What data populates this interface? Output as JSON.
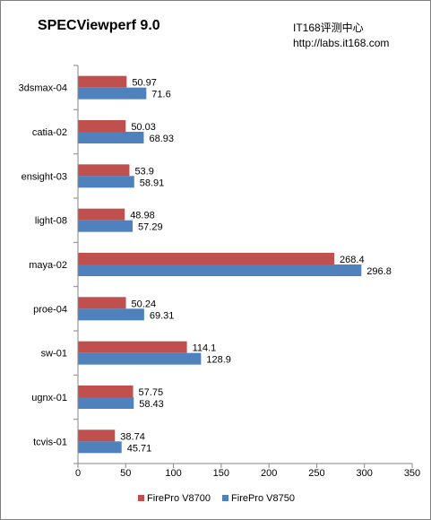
{
  "watermark": {
    "line1": "IT168评测中心",
    "line2": "http://labs.it168.com"
  },
  "colors": {
    "series1": "#c0504d",
    "series2": "#4f81bd",
    "axis": "#868686"
  },
  "chart_data": {
    "type": "bar",
    "orientation": "horizontal",
    "title": "SPECViewperf 9.0",
    "categories": [
      "3dsmax-04",
      "catia-02",
      "ensight-03",
      "light-08",
      "maya-02",
      "proe-04",
      "sw-01",
      "ugnx-01",
      "tcvis-01"
    ],
    "series": [
      {
        "name": "FirePro V8700",
        "values": [
          50.97,
          50.03,
          53.9,
          48.98,
          268.4,
          50.24,
          114.1,
          57.75,
          38.74
        ]
      },
      {
        "name": "FirePro V8750",
        "values": [
          71.6,
          68.93,
          58.91,
          57.29,
          296.8,
          69.31,
          128.9,
          58.43,
          45.71
        ]
      }
    ],
    "xlim": [
      0,
      350
    ],
    "xticks": [
      0,
      50,
      100,
      150,
      200,
      250,
      300,
      350
    ],
    "grid": false,
    "legend_position": "bottom"
  }
}
